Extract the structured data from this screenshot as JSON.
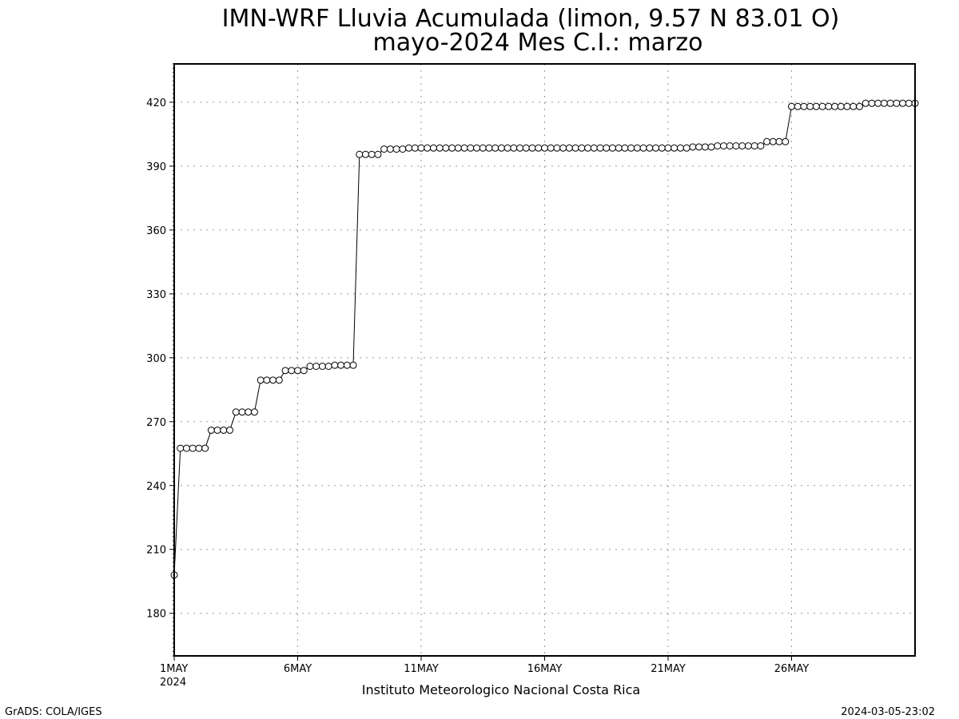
{
  "chart_data": {
    "type": "line",
    "title": "IMN-WRF  Lluvia Acumulada (limon, 9.57  N 83.01  O)",
    "subtitle": "mayo-2024 Mes C.I.: marzo",
    "x_unit": "day of May 2024",
    "xlim": [
      1,
      31
    ],
    "ylim": [
      160,
      438
    ],
    "x_ticks": [
      {
        "value": 1,
        "label": "1MAY",
        "sublabel": "2024"
      },
      {
        "value": 6,
        "label": "6MAY",
        "sublabel": ""
      },
      {
        "value": 11,
        "label": "11MAY",
        "sublabel": ""
      },
      {
        "value": 16,
        "label": "16MAY",
        "sublabel": ""
      },
      {
        "value": 21,
        "label": "21MAY",
        "sublabel": ""
      },
      {
        "value": 26,
        "label": "26MAY",
        "sublabel": ""
      }
    ],
    "y_ticks": [
      180,
      210,
      240,
      270,
      300,
      330,
      360,
      390,
      420
    ],
    "grid": true,
    "marker": "open-circle",
    "series": [
      {
        "x": [
          1.0,
          1.25,
          1.5,
          1.75,
          2.0,
          2.25,
          2.5,
          2.75,
          3.0,
          3.25,
          3.5,
          3.75,
          4.0,
          4.25,
          4.5,
          4.75,
          5.0,
          5.25,
          5.5,
          5.75,
          6.0,
          6.25,
          6.5,
          6.75,
          7.0,
          7.25,
          7.5,
          7.75,
          8.0,
          8.25,
          8.5,
          8.75,
          9.0,
          9.25,
          9.5,
          9.75,
          10.0,
          10.25,
          10.5,
          10.75,
          11.0,
          11.25,
          11.5,
          11.75,
          12.0,
          12.25,
          12.5,
          12.75,
          13.0,
          13.25,
          13.5,
          13.75,
          14.0,
          14.25,
          14.5,
          14.75,
          15.0,
          15.25,
          15.5,
          15.75,
          16.0,
          16.25,
          16.5,
          16.75,
          17.0,
          17.25,
          17.5,
          17.75,
          18.0,
          18.25,
          18.5,
          18.75,
          19.0,
          19.25,
          19.5,
          19.75,
          20.0,
          20.25,
          20.5,
          20.75,
          21.0,
          21.25,
          21.5,
          21.75,
          22.0,
          22.25,
          22.5,
          22.75,
          23.0,
          23.25,
          23.5,
          23.75,
          24.0,
          24.25,
          24.5,
          24.75,
          25.0,
          25.25,
          25.5,
          25.75,
          26.0,
          26.25,
          26.5,
          26.75,
          27.0,
          27.25,
          27.5,
          27.75,
          28.0,
          28.25,
          28.5,
          28.75,
          29.0,
          29.25,
          29.5,
          29.75,
          30.0,
          30.25,
          30.5,
          30.75,
          31.0
        ],
        "y": [
          198,
          257.5,
          257.5,
          257.5,
          257.5,
          257.5,
          266,
          266,
          266,
          266,
          274.5,
          274.5,
          274.5,
          274.5,
          289.5,
          289.5,
          289.5,
          289.5,
          294,
          294,
          294,
          294,
          296,
          296,
          296,
          296,
          296.5,
          296.5,
          296.5,
          296.5,
          395.5,
          395.5,
          395.5,
          395.5,
          398,
          398,
          398,
          398,
          398.5,
          398.5,
          398.5,
          398.5,
          398.5,
          398.5,
          398.5,
          398.5,
          398.5,
          398.5,
          398.5,
          398.5,
          398.5,
          398.5,
          398.5,
          398.5,
          398.5,
          398.5,
          398.5,
          398.5,
          398.5,
          398.5,
          398.5,
          398.5,
          398.5,
          398.5,
          398.5,
          398.5,
          398.5,
          398.5,
          398.5,
          398.5,
          398.5,
          398.5,
          398.5,
          398.5,
          398.5,
          398.5,
          398.5,
          398.5,
          398.5,
          398.5,
          398.5,
          398.5,
          398.5,
          398.5,
          399,
          399,
          399,
          399,
          399.5,
          399.5,
          399.5,
          399.5,
          399.5,
          399.5,
          399.5,
          399.5,
          401.5,
          401.5,
          401.5,
          401.5,
          418,
          418,
          418,
          418,
          418,
          418,
          418,
          418,
          418,
          418,
          418,
          418,
          419.5,
          419.5,
          419.5,
          419.5,
          419.5,
          419.5,
          419.5,
          419.5,
          419.5
        ]
      }
    ]
  },
  "footer": {
    "institution": "Instituto Meteorologico Nacional Costa Rica",
    "software_credit": "GrADS: COLA/IGES",
    "timestamp": "2024-03-05-23:02"
  }
}
